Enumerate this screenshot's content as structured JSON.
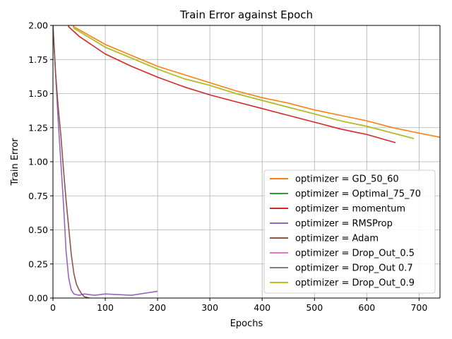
{
  "chart_data": {
    "type": "line",
    "title": "Train Error against Epoch",
    "xlabel": "Epochs",
    "ylabel": "Train Error",
    "xlim": [
      0,
      740
    ],
    "ylim": [
      0,
      2.0
    ],
    "xticks": [
      0,
      100,
      200,
      300,
      400,
      500,
      600,
      700
    ],
    "xtick_labels": [
      "0",
      "100",
      "200",
      "300",
      "400",
      "500",
      "600",
      "700"
    ],
    "yticks": [
      0,
      0.25,
      0.5,
      0.75,
      1.0,
      1.25,
      1.5,
      1.75,
      2.0
    ],
    "ytick_labels": [
      "0.00",
      "0.25",
      "0.50",
      "0.75",
      "1.00",
      "1.25",
      "1.50",
      "1.75",
      "2.00"
    ],
    "grid": true,
    "legend_position": "lower-right",
    "series": [
      {
        "name": "optimizer = GD_50_60",
        "color": "#ff7f0e",
        "x": [
          0,
          40,
          100,
          150,
          200,
          250,
          300,
          350,
          400,
          450,
          500,
          550,
          600,
          650,
          700,
          740
        ],
        "y": [
          2.6,
          1.99,
          1.86,
          1.78,
          1.7,
          1.64,
          1.58,
          1.52,
          1.47,
          1.43,
          1.38,
          1.34,
          1.3,
          1.25,
          1.21,
          1.18
        ]
      },
      {
        "name": "optimizer = Optimal_75_70",
        "color": "#2ca02c",
        "x": [
          0,
          40,
          100,
          150,
          200,
          250,
          300,
          350,
          400,
          450,
          500,
          550,
          600,
          650,
          690
        ],
        "y": [
          2.6,
          1.98,
          1.84,
          1.76,
          1.68,
          1.61,
          1.56,
          1.5,
          1.45,
          1.4,
          1.35,
          1.3,
          1.26,
          1.21,
          1.17
        ]
      },
      {
        "name": "optimizer = momentum",
        "color": "#d62728",
        "x": [
          0,
          30,
          50,
          100,
          150,
          200,
          250,
          300,
          350,
          400,
          450,
          500,
          550,
          600,
          655
        ],
        "y": [
          2.6,
          1.99,
          1.92,
          1.79,
          1.7,
          1.62,
          1.55,
          1.49,
          1.44,
          1.39,
          1.34,
          1.29,
          1.24,
          1.2,
          1.14
        ]
      },
      {
        "name": "optimizer = RMSProp",
        "color": "#9467bd",
        "x": [
          0,
          5,
          10,
          15,
          20,
          25,
          30,
          35,
          40,
          50,
          60,
          80,
          100,
          150,
          200
        ],
        "y": [
          2.0,
          1.65,
          1.3,
          1.0,
          0.7,
          0.35,
          0.15,
          0.06,
          0.03,
          0.02,
          0.03,
          0.02,
          0.03,
          0.02,
          0.05
        ]
      },
      {
        "name": "optimizer = Adam",
        "color": "#8c564b",
        "x": [
          0,
          5,
          10,
          15,
          20,
          25,
          30,
          35,
          40,
          45,
          50,
          55,
          60,
          70
        ],
        "y": [
          2.0,
          1.65,
          1.4,
          1.2,
          0.95,
          0.72,
          0.52,
          0.32,
          0.18,
          0.1,
          0.06,
          0.03,
          0.01,
          0.0
        ]
      },
      {
        "name": "optimizer = Drop_Out_0.5",
        "color": "#e377c2",
        "x": [],
        "y": []
      },
      {
        "name": "optimizer = Drop_Out 0.7",
        "color": "#7f7f7f",
        "x": [],
        "y": []
      },
      {
        "name": "optimizer = Drop_Out_0.9",
        "color": "#bcbd22",
        "x": [
          0,
          40,
          100,
          150,
          200,
          250,
          300,
          350,
          400,
          450,
          500,
          550,
          600,
          650,
          690
        ],
        "y": [
          2.6,
          1.98,
          1.84,
          1.76,
          1.68,
          1.61,
          1.56,
          1.5,
          1.45,
          1.4,
          1.35,
          1.3,
          1.26,
          1.21,
          1.17
        ]
      }
    ]
  }
}
